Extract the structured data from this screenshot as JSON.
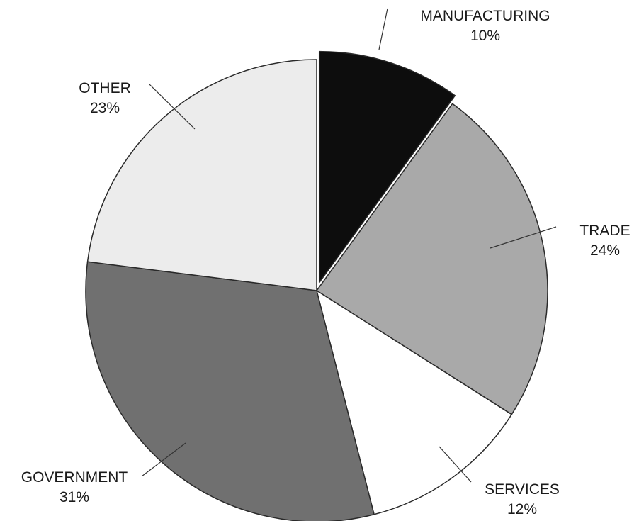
{
  "chart_data": {
    "type": "pie",
    "title": "",
    "start_angle_deg": 0,
    "direction": "clockwise",
    "exploded": [
      "MANUFACTURING"
    ],
    "slices": [
      {
        "label": "MANUFACTURING",
        "value": 10,
        "value_label": "10%",
        "color": "#0d0d0d"
      },
      {
        "label": "TRADE",
        "value": 24,
        "value_label": "24%",
        "color": "#a9a9a9"
      },
      {
        "label": "SERVICES",
        "value": 12,
        "value_label": "12%",
        "color": "#ffffff"
      },
      {
        "label": "GOVERNMENT",
        "value": 31,
        "value_label": "31%",
        "color": "#707070"
      },
      {
        "label": "OTHER",
        "value": 23,
        "value_label": "23%",
        "color": "#ececec"
      }
    ]
  }
}
